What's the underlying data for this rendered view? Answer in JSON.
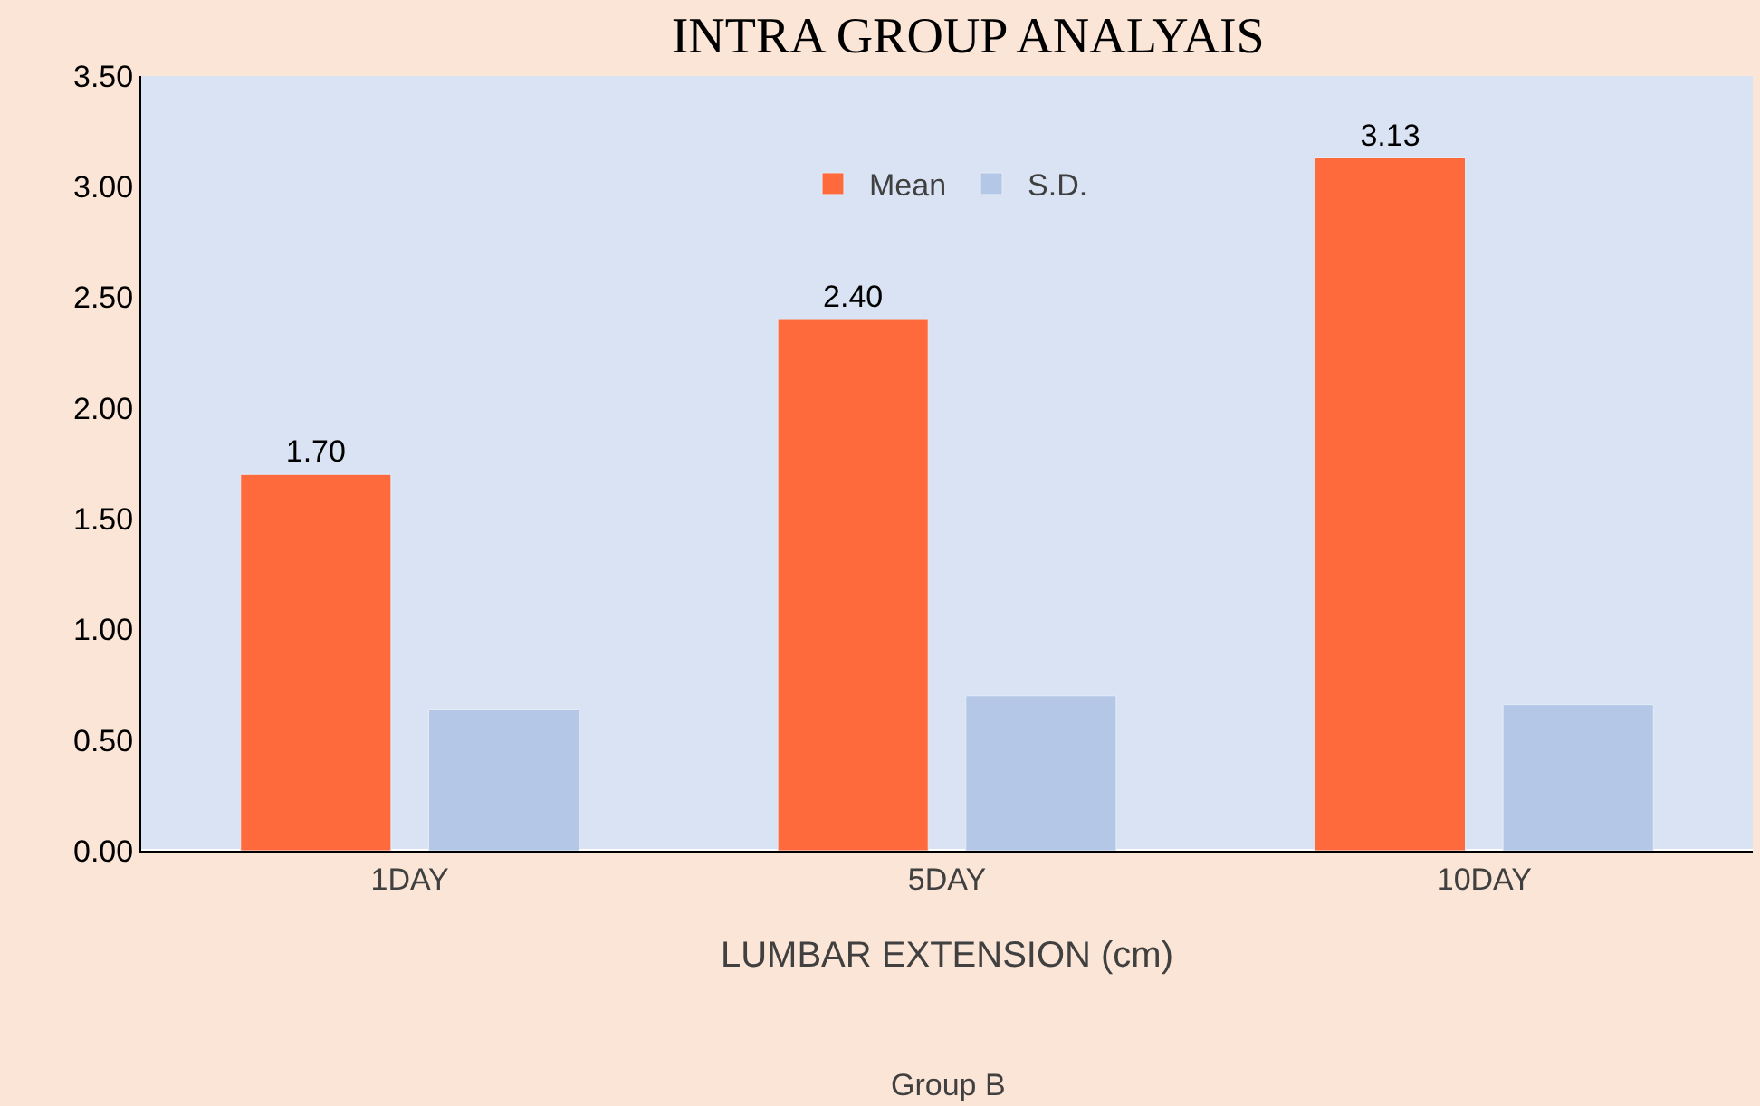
{
  "chart_data": {
    "type": "bar",
    "title": "INTRA GROUP ANALYAIS",
    "xlabel": "LUMBAR EXTENSION (cm)",
    "annotations": [
      "Group B"
    ],
    "categories": [
      "1DAY",
      "5DAY",
      "10DAY"
    ],
    "series": [
      {
        "name": "Mean",
        "color": "#ff6a3d",
        "values": [
          1.7,
          2.4,
          3.13
        ],
        "value_labels": [
          "1.70",
          "2.40",
          "3.13"
        ]
      },
      {
        "name": "S.D.",
        "color": "#b4c7e7",
        "values": [
          0.64,
          0.7,
          0.66
        ]
      }
    ],
    "ylim": [
      0,
      3.5
    ],
    "yticks": [
      {
        "value": 0,
        "label": "0.00"
      },
      {
        "value": 0.5,
        "label": "0.50"
      },
      {
        "value": 1,
        "label": "1.00"
      },
      {
        "value": 1.5,
        "label": "1.50"
      },
      {
        "value": 2,
        "label": "2.00"
      },
      {
        "value": 2.5,
        "label": "2.50"
      },
      {
        "value": 3,
        "label": "3.00"
      },
      {
        "value": 3.5,
        "label": "3.50"
      }
    ],
    "grid": false,
    "legend": "top"
  }
}
